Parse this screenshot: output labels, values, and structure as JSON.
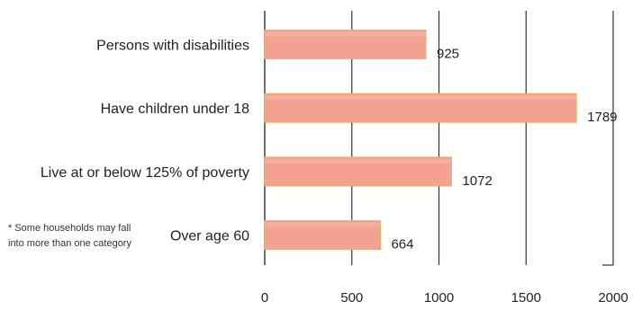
{
  "chart_data": {
    "type": "bar",
    "orientation": "horizontal",
    "categories": [
      "Persons with disabilities",
      "Have children under 18",
      "Live at or below 125% of poverty",
      "Over age 60"
    ],
    "values": [
      925,
      1789,
      1072,
      664
    ],
    "value_labels": [
      "925",
      "1789",
      "1072",
      "664"
    ],
    "xlim": [
      0,
      2000
    ],
    "xticks": [
      0,
      500,
      1000,
      1500,
      2000
    ],
    "grid": "vertical lines at ticks",
    "legend": "none",
    "bar_color": "#f4a191",
    "bar_edge_color": "#e8b45a"
  },
  "footnote": "* Some households may fall into more than one category"
}
